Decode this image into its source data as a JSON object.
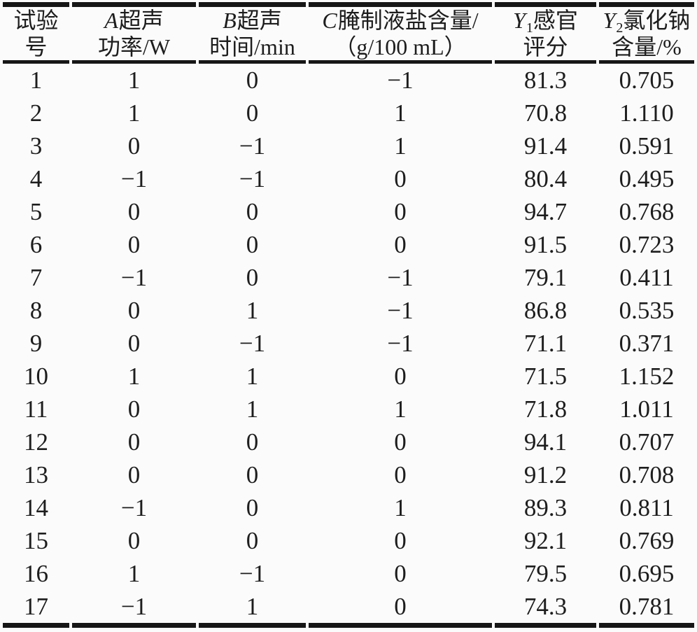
{
  "table": {
    "columns": [
      {
        "id": "trial-number",
        "var": "",
        "sub": "",
        "line1": "试验",
        "line2": "号"
      },
      {
        "id": "a-ultrasonic-power",
        "var": "A",
        "sub": "",
        "line1": "超声",
        "line2": "功率/W"
      },
      {
        "id": "b-ultrasonic-time",
        "var": "B",
        "sub": "",
        "line1": "超声",
        "line2": "时间/min"
      },
      {
        "id": "c-brine-salt-content",
        "var": "C",
        "sub": "",
        "line1": "腌制液盐含量/",
        "line2": "（g/100 mL）"
      },
      {
        "id": "y1-sensory-score",
        "var": "Y",
        "sub": "1",
        "line1": "感官",
        "line2": "评分"
      },
      {
        "id": "y2-nacl-content",
        "var": "Y",
        "sub": "2",
        "line1": "氯化钠",
        "line2": "含量/%"
      }
    ],
    "rows": [
      [
        "1",
        "1",
        "0",
        "−1",
        "81.3",
        "0.705"
      ],
      [
        "2",
        "1",
        "0",
        "1",
        "70.8",
        "1.110"
      ],
      [
        "3",
        "0",
        "−1",
        "1",
        "91.4",
        "0.591"
      ],
      [
        "4",
        "−1",
        "−1",
        "0",
        "80.4",
        "0.495"
      ],
      [
        "5",
        "0",
        "0",
        "0",
        "94.7",
        "0.768"
      ],
      [
        "6",
        "0",
        "0",
        "0",
        "91.5",
        "0.723"
      ],
      [
        "7",
        "−1",
        "0",
        "−1",
        "79.1",
        "0.411"
      ],
      [
        "8",
        "0",
        "1",
        "−1",
        "86.8",
        "0.535"
      ],
      [
        "9",
        "0",
        "−1",
        "−1",
        "71.1",
        "0.371"
      ],
      [
        "10",
        "1",
        "1",
        "0",
        "71.5",
        "1.152"
      ],
      [
        "11",
        "0",
        "1",
        "1",
        "71.8",
        "1.011"
      ],
      [
        "12",
        "0",
        "0",
        "0",
        "94.1",
        "0.707"
      ],
      [
        "13",
        "0",
        "0",
        "0",
        "91.2",
        "0.708"
      ],
      [
        "14",
        "−1",
        "0",
        "1",
        "89.3",
        "0.811"
      ],
      [
        "15",
        "0",
        "0",
        "0",
        "92.1",
        "0.769"
      ],
      [
        "16",
        "1",
        "−1",
        "0",
        "79.5",
        "0.695"
      ],
      [
        "17",
        "−1",
        "1",
        "0",
        "74.3",
        "0.781"
      ]
    ],
    "colors": {
      "rule": "#161616",
      "text": "#1d1d1d",
      "background": "#fbfbfb"
    }
  }
}
